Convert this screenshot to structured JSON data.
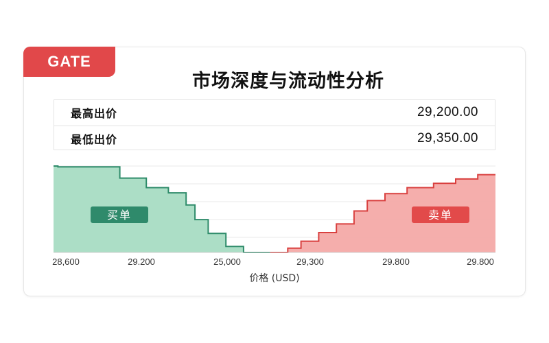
{
  "header": {
    "badge": "GATE",
    "title": "市场深度与流动性分析"
  },
  "price_table": {
    "rows": [
      {
        "label": "最高出价",
        "value": "29,200.00"
      },
      {
        "label": "最低出价",
        "value": "29,350.00"
      }
    ]
  },
  "colors": {
    "bid_fill": "#a8dcc3",
    "bid_line": "#2e8b6a",
    "bid_label_bg": "#2f8a6b",
    "ask_fill": "#f4aaa8",
    "ask_line": "#d9403f",
    "ask_label_bg": "#e24a4a",
    "grid": "#e8e8e8"
  },
  "chart_data": {
    "type": "area",
    "title": "",
    "xlabel": "价格 (USD)",
    "ylabel": "",
    "x_tick_labels": [
      "28,600",
      "29.200",
      "25,000",
      "29,300",
      "29.800",
      "29.800"
    ],
    "grid": true,
    "series": [
      {
        "name": "买单",
        "side": "bid",
        "points": [
          [
            0.0,
            1.0
          ],
          [
            0.01,
            1.0
          ],
          [
            0.01,
            0.99
          ],
          [
            0.15,
            0.99
          ],
          [
            0.15,
            0.86
          ],
          [
            0.21,
            0.86
          ],
          [
            0.21,
            0.75
          ],
          [
            0.26,
            0.75
          ],
          [
            0.26,
            0.69
          ],
          [
            0.3,
            0.69
          ],
          [
            0.3,
            0.55
          ],
          [
            0.32,
            0.55
          ],
          [
            0.32,
            0.38
          ],
          [
            0.35,
            0.38
          ],
          [
            0.35,
            0.22
          ],
          [
            0.39,
            0.22
          ],
          [
            0.39,
            0.07
          ],
          [
            0.43,
            0.07
          ],
          [
            0.43,
            0.0
          ],
          [
            0.49,
            0.0
          ]
        ]
      },
      {
        "name": "卖单",
        "side": "ask",
        "points": [
          [
            0.49,
            0.0
          ],
          [
            0.53,
            0.0
          ],
          [
            0.53,
            0.05
          ],
          [
            0.56,
            0.05
          ],
          [
            0.56,
            0.13
          ],
          [
            0.6,
            0.13
          ],
          [
            0.6,
            0.23
          ],
          [
            0.64,
            0.23
          ],
          [
            0.64,
            0.33
          ],
          [
            0.68,
            0.33
          ],
          [
            0.68,
            0.48
          ],
          [
            0.71,
            0.48
          ],
          [
            0.71,
            0.6
          ],
          [
            0.75,
            0.6
          ],
          [
            0.75,
            0.68
          ],
          [
            0.8,
            0.68
          ],
          [
            0.8,
            0.75
          ],
          [
            0.86,
            0.75
          ],
          [
            0.86,
            0.8
          ],
          [
            0.91,
            0.8
          ],
          [
            0.91,
            0.85
          ],
          [
            0.96,
            0.85
          ],
          [
            0.96,
            0.9
          ],
          [
            1.0,
            0.9
          ]
        ]
      }
    ],
    "ylim": [
      0,
      1
    ],
    "xlim": [
      0,
      1
    ]
  }
}
